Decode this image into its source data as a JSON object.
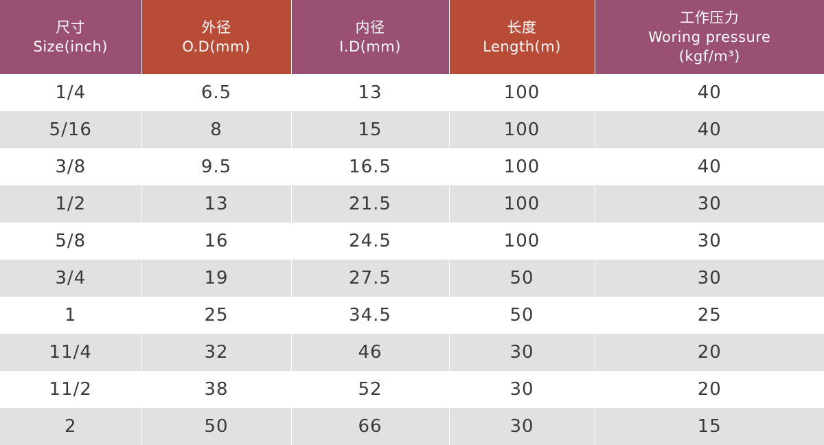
{
  "colors": {
    "header_purple": "#9a5072",
    "header_orange": "#b84c36",
    "row_stripe": "#e2e1e1",
    "row_plain": "#ffffff",
    "header_text": "#ffffff",
    "cell_text": "#3a3a3a"
  },
  "headers": [
    {
      "zh": "尺寸",
      "en": "Size(inch)",
      "unit": ""
    },
    {
      "zh": "外径",
      "en": "O.D(mm)",
      "unit": ""
    },
    {
      "zh": "内径",
      "en": "I.D(mm)",
      "unit": ""
    },
    {
      "zh": "长度",
      "en": "Length(m)",
      "unit": ""
    },
    {
      "zh": "工作压力",
      "en": "Woring pressure",
      "unit": "(kgf/m³)"
    }
  ],
  "rows": [
    [
      "1/4",
      "6.5",
      "13",
      "100",
      "40"
    ],
    [
      "5/16",
      "8",
      "15",
      "100",
      "40"
    ],
    [
      "3/8",
      "9.5",
      "16.5",
      "100",
      "40"
    ],
    [
      "1/2",
      "13",
      "21.5",
      "100",
      "30"
    ],
    [
      "5/8",
      "16",
      "24.5",
      "100",
      "30"
    ],
    [
      "3/4",
      "19",
      "27.5",
      "50",
      "30"
    ],
    [
      "1",
      "25",
      "34.5",
      "50",
      "25"
    ],
    [
      "11/4",
      "32",
      "46",
      "30",
      "20"
    ],
    [
      "11/2",
      "38",
      "52",
      "30",
      "20"
    ],
    [
      "2",
      "50",
      "66",
      "30",
      "15"
    ]
  ]
}
